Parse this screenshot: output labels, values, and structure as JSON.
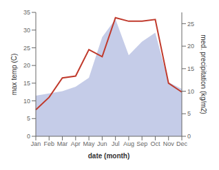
{
  "chart_data": {
    "type": "line",
    "xlabel": "date (month)",
    "ylabel": "max temp (C)",
    "y2label": "med. precipitation (kg/m2)",
    "categories": [
      "Jan",
      "Feb",
      "Mar",
      "Apr",
      "May",
      "Jun",
      "Jul",
      "Aug",
      "Sep",
      "Oct",
      "Nov",
      "Dec"
    ],
    "series": [
      {
        "type": "area",
        "axis": "y2",
        "color": "#c5cce8",
        "values": [
          9.0,
          9.5,
          10.0,
          11.0,
          13.0,
          22.0,
          26.0,
          18.0,
          21.0,
          23.0,
          12.0,
          10.5
        ]
      },
      {
        "type": "line",
        "color": "#c0392b",
        "values": [
          7.5,
          11.0,
          16.5,
          17.0,
          24.5,
          22.5,
          33.5,
          32.5,
          32.5,
          33.0,
          15.0,
          12.5
        ]
      }
    ],
    "ylim": [
      0,
      35
    ],
    "yticks": [
      0,
      5,
      10,
      15,
      20,
      25,
      30,
      35
    ],
    "y2lim": [
      0,
      27.5
    ],
    "y2ticks": [
      0,
      5,
      10,
      15,
      20,
      25
    ],
    "grid": false
  }
}
